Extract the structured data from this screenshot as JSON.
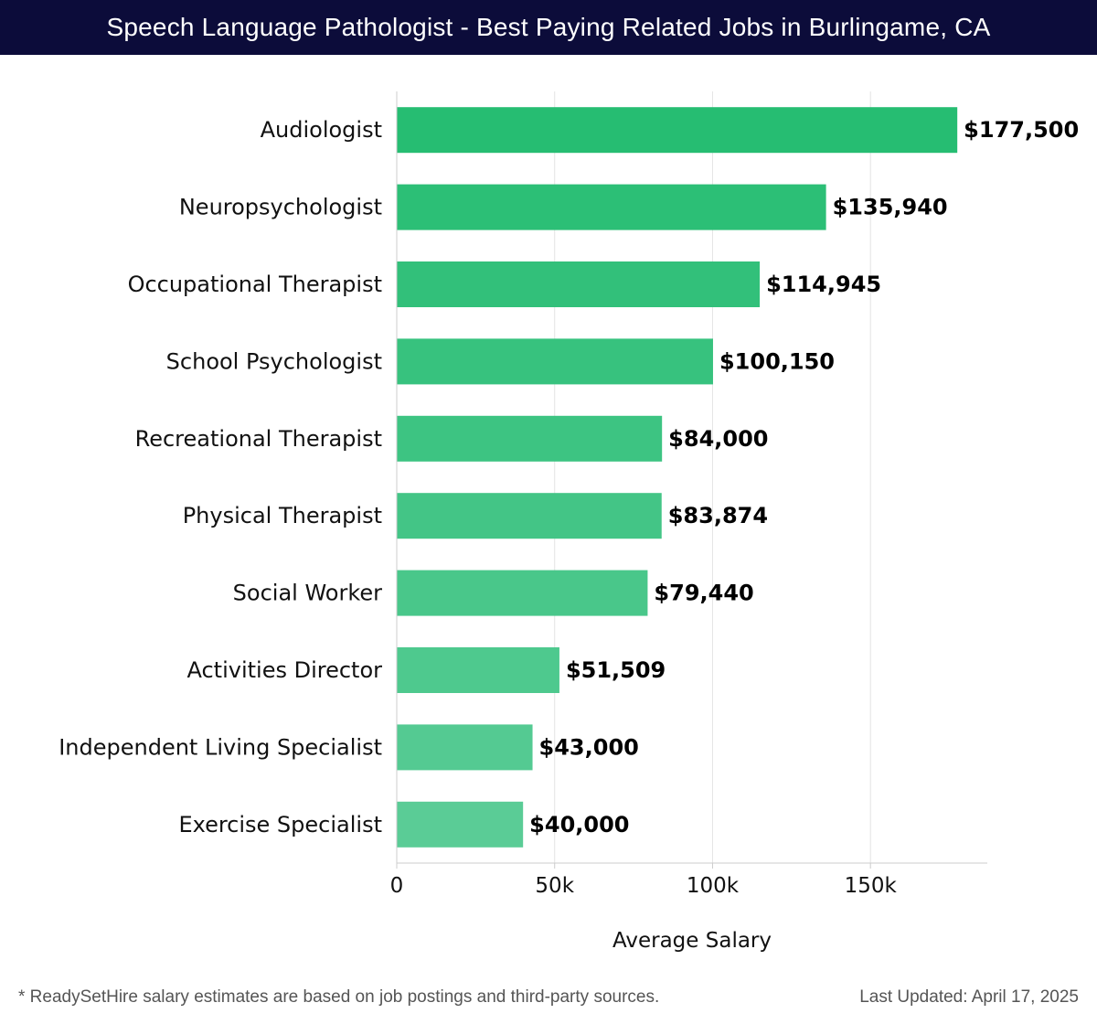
{
  "title": "Speech Language Pathologist - Best Paying Related Jobs in Burlingame, CA",
  "footer": {
    "note": "* ReadySetHire salary estimates are based on job postings and third-party sources.",
    "updated": "Last Updated: April 17, 2025"
  },
  "chart_data": {
    "type": "bar",
    "orientation": "horizontal",
    "categories": [
      "Audiologist",
      "Neuropsychologist",
      "Occupational Therapist",
      "School Psychologist",
      "Recreational Therapist",
      "Physical Therapist",
      "Social Worker",
      "Activities Director",
      "Independent Living Specialist",
      "Exercise Specialist"
    ],
    "values": [
      177500,
      135940,
      114945,
      100150,
      84000,
      83874,
      79440,
      51509,
      43000,
      40000
    ],
    "value_labels": [
      "$177,500",
      "$135,940",
      "$114,945",
      "$100,150",
      "$84,000",
      "$83,874",
      "$79,440",
      "$51,509",
      "$43,000",
      "$40,000"
    ],
    "xlabel": "Average Salary",
    "ylabel": "",
    "xlim": [
      0,
      187000
    ],
    "xticks": [
      0,
      50000,
      100000,
      150000
    ],
    "xtick_labels": [
      "0",
      "50k",
      "100k",
      "150k"
    ],
    "grid": true,
    "colors": {
      "bar_top": "#26bd72",
      "bar_bottom": "#5acc96",
      "grid": "#e4e4e4",
      "axis": "#cccccc",
      "title_bg": "#0c0c3a"
    }
  }
}
